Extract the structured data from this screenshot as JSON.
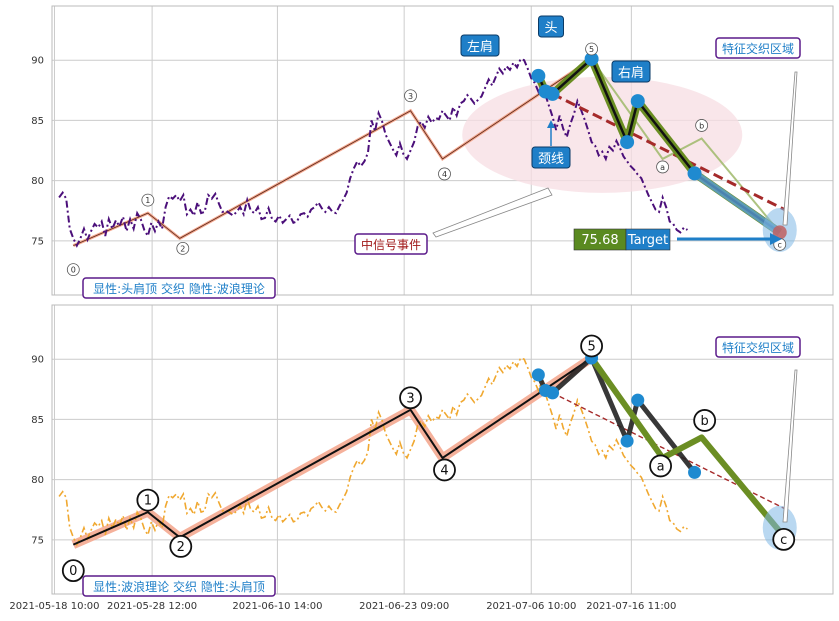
{
  "colors": {
    "grid": "#cccccc",
    "price_top": "#4b0f7a",
    "price_bottom": "#f0a830",
    "wave_salmon": "#f4a890",
    "head_shoulders_green": "#6b8e23",
    "neckline_red": "#a52a2a",
    "blue_point": "#1f8ad0",
    "callout_blue": "#1f7fc8",
    "box_border_purple": "#5a1a8a",
    "box_text_blue": "#1f7fc8",
    "cn_event_red": "#a01818",
    "target_green": "#5a8a20",
    "ellipse_pink": "#f7dde3"
  },
  "chart_data": [
    {
      "type": "line",
      "panel": "top",
      "title": "",
      "xlabel": "",
      "ylabel": "",
      "ylim": [
        70.5,
        94.5
      ],
      "yticks": [
        75,
        80,
        85,
        90
      ],
      "xticks": [
        "2021-05-18 10:00",
        "2021-05-28 12:00",
        "2021-06-10 14:00",
        "2021-06-23 09:00",
        "2021-07-06 10:00",
        "2021-07-16 11:00"
      ],
      "grid": true,
      "price_series": [
        [
          0,
          78.6
        ],
        [
          1,
          79
        ],
        [
          2,
          78.5
        ],
        [
          3,
          76
        ],
        [
          4,
          75.2
        ],
        [
          5,
          74.6
        ],
        [
          6,
          75.2
        ],
        [
          7,
          76
        ],
        [
          8,
          75.1
        ],
        [
          9,
          75.8
        ],
        [
          10,
          76.4
        ],
        [
          11,
          76.1
        ],
        [
          12,
          76.6
        ],
        [
          13,
          75.4
        ],
        [
          14,
          76.8
        ],
        [
          15,
          76
        ],
        [
          16,
          76.7
        ],
        [
          17,
          76.2
        ],
        [
          18,
          77
        ],
        [
          19,
          75.8
        ],
        [
          20,
          76.8
        ],
        [
          21,
          76
        ],
        [
          22,
          77.3
        ],
        [
          23,
          76.8
        ],
        [
          24,
          75.9
        ],
        [
          25,
          75.4
        ],
        [
          26,
          76.5
        ],
        [
          27,
          75.8
        ],
        [
          28,
          76.6
        ],
        [
          29,
          76
        ],
        [
          30,
          77.8
        ],
        [
          31,
          78.7
        ],
        [
          32,
          78.5
        ],
        [
          33,
          78.8
        ],
        [
          34,
          78.3
        ],
        [
          35,
          78.8
        ],
        [
          36,
          77.2
        ],
        [
          37,
          77.6
        ],
        [
          38,
          77.1
        ],
        [
          39,
          78.2
        ],
        [
          40,
          77.3
        ],
        [
          41,
          77.4
        ],
        [
          42,
          78.8
        ],
        [
          43,
          78.5
        ],
        [
          44,
          78.9
        ],
        [
          45,
          78.1
        ],
        [
          46,
          77.4
        ],
        [
          47,
          77.5
        ],
        [
          48,
          77.3
        ],
        [
          49,
          77.1
        ],
        [
          50,
          77.4
        ],
        [
          51,
          77.8
        ],
        [
          52,
          77.2
        ],
        [
          53,
          78.4
        ],
        [
          54,
          77.5
        ],
        [
          55,
          77.3
        ],
        [
          56,
          77.8
        ],
        [
          57,
          76.8
        ],
        [
          58,
          76.9
        ],
        [
          59,
          77.7
        ],
        [
          60,
          76.8
        ],
        [
          61,
          76.6
        ],
        [
          62,
          77.1
        ],
        [
          63,
          76.5
        ],
        [
          64,
          76.8
        ],
        [
          65,
          77.1
        ],
        [
          66,
          76.5
        ],
        [
          67,
          76.6
        ],
        [
          68,
          77.2
        ],
        [
          69,
          77.3
        ],
        [
          70,
          77
        ],
        [
          71,
          77.6
        ],
        [
          72,
          77.8
        ],
        [
          73,
          78.2
        ],
        [
          74,
          77.7
        ],
        [
          75,
          77.4
        ],
        [
          76,
          77.8
        ],
        [
          77,
          77.4
        ],
        [
          78,
          77.3
        ],
        [
          79,
          77.9
        ],
        [
          80,
          78.4
        ],
        [
          81,
          79
        ],
        [
          82,
          80.2
        ],
        [
          83,
          81
        ],
        [
          84,
          81.6
        ],
        [
          85,
          81.2
        ],
        [
          86,
          81.6
        ],
        [
          87,
          82.3
        ],
        [
          88,
          85
        ],
        [
          89,
          84.1
        ],
        [
          90,
          85.6
        ],
        [
          91,
          84.9
        ],
        [
          92,
          83.8
        ],
        [
          93,
          83.2
        ],
        [
          94,
          82.6
        ],
        [
          95,
          82.1
        ],
        [
          96,
          83.1
        ],
        [
          97,
          82.2
        ],
        [
          98,
          81.8
        ],
        [
          99,
          82.5
        ],
        [
          100,
          83.2
        ],
        [
          101,
          84.5
        ],
        [
          102,
          84.9
        ],
        [
          103,
          84.4
        ],
        [
          104,
          85.3
        ],
        [
          105,
          84.8
        ],
        [
          106,
          85.2
        ],
        [
          107,
          85.1
        ],
        [
          108,
          85.8
        ],
        [
          109,
          85.4
        ],
        [
          110,
          85
        ],
        [
          111,
          86.1
        ],
        [
          112,
          85.4
        ],
        [
          113,
          86.4
        ],
        [
          114,
          86.6
        ],
        [
          115,
          87.1
        ],
        [
          116,
          86.8
        ],
        [
          117,
          86.4
        ],
        [
          118,
          86.7
        ],
        [
          119,
          87
        ],
        [
          120,
          87.7
        ],
        [
          121,
          88.4
        ],
        [
          122,
          87.9
        ],
        [
          123,
          88.6
        ],
        [
          124,
          89.3
        ],
        [
          125,
          88.9
        ],
        [
          126,
          89.5
        ],
        [
          127,
          89.2
        ],
        [
          128,
          89.8
        ],
        [
          129,
          89.4
        ],
        [
          130,
          90.1
        ],
        [
          131,
          90
        ],
        [
          132,
          89.3
        ],
        [
          133,
          88.5
        ],
        [
          134,
          88.1
        ],
        [
          135,
          87.4
        ],
        [
          136,
          88.2
        ],
        [
          137,
          87.1
        ],
        [
          138,
          86.2
        ],
        [
          139,
          85.3
        ],
        [
          140,
          84.2
        ],
        [
          141,
          85.4
        ],
        [
          142,
          84.3
        ],
        [
          143,
          83.6
        ],
        [
          144,
          84.7
        ],
        [
          145,
          85.5
        ],
        [
          146,
          86.6
        ],
        [
          147,
          85.9
        ],
        [
          148,
          85.1
        ],
        [
          149,
          84.2
        ],
        [
          150,
          83.2
        ],
        [
          151,
          82.9
        ],
        [
          152,
          82.1
        ],
        [
          153,
          82.4
        ],
        [
          154,
          81.8
        ],
        [
          155,
          82.8
        ],
        [
          156,
          82.5
        ],
        [
          157,
          83.3
        ],
        [
          158,
          82.7
        ],
        [
          159,
          82
        ],
        [
          160,
          81.6
        ],
        [
          161,
          81.2
        ],
        [
          162,
          80.9
        ],
        [
          163,
          80.5
        ],
        [
          164,
          80.2
        ],
        [
          165,
          79.5
        ],
        [
          166,
          78.8
        ],
        [
          167,
          78.2
        ],
        [
          168,
          77.6
        ],
        [
          169,
          77.4
        ],
        [
          170,
          78.6
        ],
        [
          171,
          77.8
        ],
        [
          172,
          76.6
        ],
        [
          173,
          76.4
        ],
        [
          174,
          75.9
        ],
        [
          175,
          75.7
        ],
        [
          176,
          76.1
        ],
        [
          177,
          75.9
        ]
      ],
      "wave_points": [
        {
          "label": "0",
          "x": 4,
          "y": 74.6
        },
        {
          "label": "1",
          "x": 25,
          "y": 77.3
        },
        {
          "label": "2",
          "x": 34,
          "y": 75.2
        },
        {
          "label": "3",
          "x": 99,
          "y": 85.8
        },
        {
          "label": "4",
          "x": 108,
          "y": 81.8
        },
        {
          "label": "5",
          "x": 150,
          "y": 90.1
        },
        {
          "label": "a",
          "x": 170,
          "y": 81.8
        },
        {
          "label": "b",
          "x": 181,
          "y": 83.5
        },
        {
          "label": "c",
          "x": 203,
          "y": 75.7
        }
      ],
      "hs_points": [
        {
          "x": 135,
          "y": 88.7
        },
        {
          "x": 137,
          "y": 87.4
        },
        {
          "x": 139,
          "y": 87.2
        },
        {
          "x": 150,
          "y": 90.1
        },
        {
          "x": 160,
          "y": 83.2
        },
        {
          "x": 163,
          "y": 86.6
        },
        {
          "x": 179,
          "y": 80.6
        },
        {
          "x": 203,
          "y": 75.7
        }
      ],
      "neckline": [
        [
          139,
          87.2
        ],
        [
          205,
          77.5
        ]
      ],
      "annotations": {
        "left_shoulder": "左肩",
        "head": "头",
        "right_shoulder": "右肩",
        "neckline": "颈线",
        "feature_zone": "特征交织区域",
        "signal_event": "中信号事件",
        "target_label": "Target",
        "target_value": "75.68",
        "panel_caption": "显性:头肩顶 交织 隐性:波浪理论"
      }
    },
    {
      "type": "line",
      "panel": "bottom",
      "ylim": [
        70.5,
        94.5
      ],
      "yticks": [
        75,
        80,
        85,
        90
      ],
      "grid": true,
      "wave_points": [
        {
          "label": "0",
          "x": 4,
          "y": 74.6
        },
        {
          "label": "1",
          "x": 25,
          "y": 77.3
        },
        {
          "label": "2",
          "x": 34,
          "y": 75.2
        },
        {
          "label": "3",
          "x": 99,
          "y": 85.8
        },
        {
          "label": "4",
          "x": 108,
          "y": 81.8
        },
        {
          "label": "5",
          "x": 150,
          "y": 90.1
        },
        {
          "label": "a",
          "x": 170,
          "y": 81.8
        },
        {
          "label": "b",
          "x": 181,
          "y": 83.5
        },
        {
          "label": "c",
          "x": 203,
          "y": 75.7
        }
      ],
      "annotations": {
        "feature_zone": "特征交织区域",
        "panel_caption": "显性:波浪理论 交织 隐性:头肩顶"
      }
    }
  ]
}
